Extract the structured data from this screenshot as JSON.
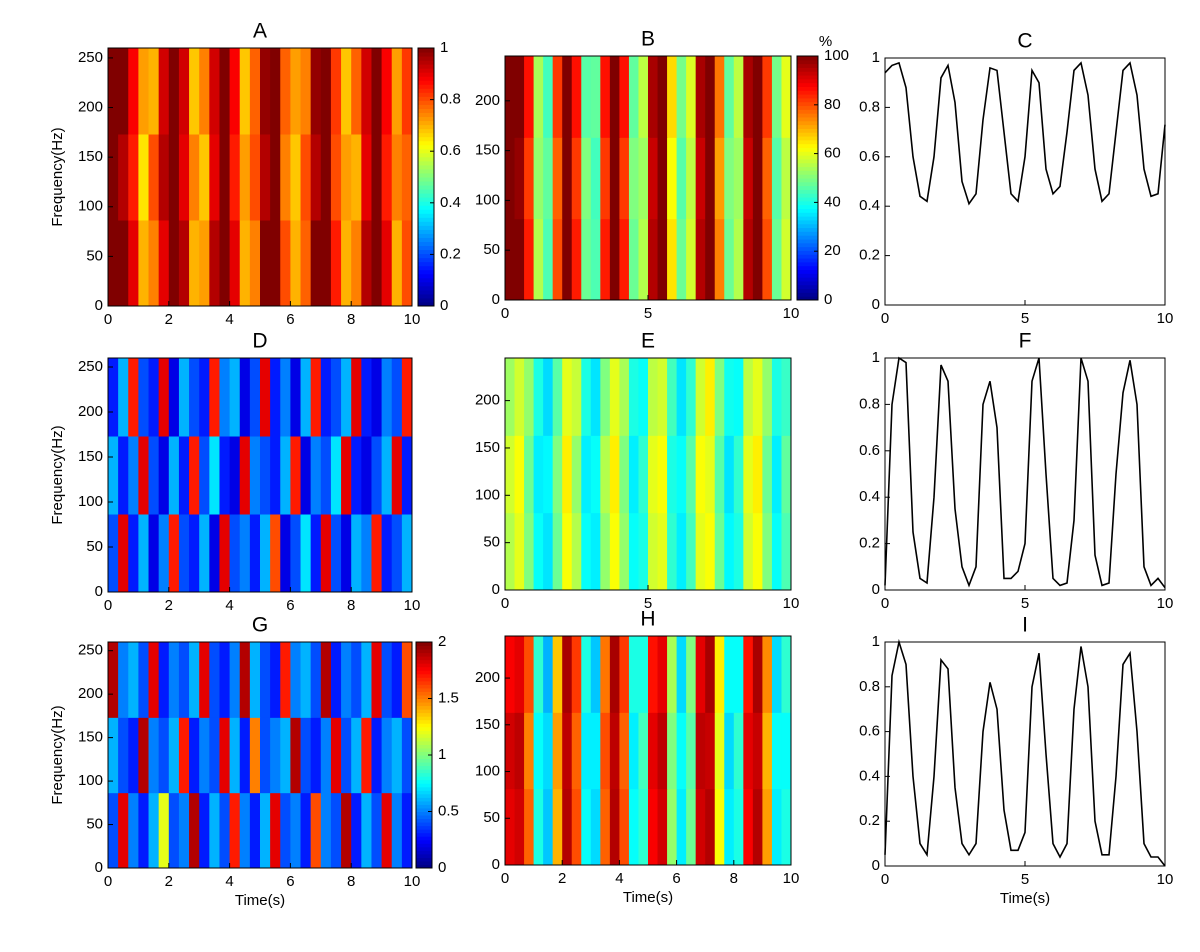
{
  "chart_data": [
    {
      "type": "heatmap",
      "title": "A",
      "ylabel": "Frequency(Hz)",
      "xlim": [
        0,
        10
      ],
      "ylim": [
        0,
        260
      ],
      "xticks": [
        0,
        2,
        4,
        6,
        8,
        10
      ],
      "yticks": [
        0,
        50,
        100,
        150,
        200,
        250
      ],
      "zlim": [
        0,
        1
      ],
      "colorbar": {
        "ticks": [
          0,
          0.2,
          0.4,
          0.6,
          0.8,
          1
        ]
      },
      "z": [
        [
          1,
          1,
          0.9,
          0.7,
          0.75,
          0.9,
          1,
          0.95,
          0.7,
          0.72,
          0.95,
          1,
          0.9,
          0.7,
          0.75,
          1,
          1,
          0.8,
          0.7,
          0.78,
          1,
          1,
          0.85,
          0.7,
          0.75,
          0.95,
          1,
          0.9,
          0.7,
          0.8
        ],
        [
          1,
          0.95,
          0.85,
          0.65,
          0.8,
          0.95,
          1,
          0.9,
          0.75,
          0.68,
          0.9,
          1,
          0.85,
          0.72,
          0.8,
          0.95,
          1,
          0.75,
          0.68,
          0.8,
          0.95,
          1,
          0.8,
          0.72,
          0.7,
          0.9,
          1,
          0.85,
          0.75,
          0.78
        ],
        [
          1,
          1,
          0.88,
          0.72,
          0.7,
          0.92,
          1,
          0.92,
          0.68,
          0.75,
          0.92,
          1,
          0.88,
          0.68,
          0.78,
          0.98,
          1,
          0.78,
          0.72,
          0.75,
          0.98,
          1,
          0.82,
          0.68,
          0.78,
          0.92,
          1,
          0.88,
          0.72,
          0.82
        ]
      ]
    },
    {
      "type": "heatmap",
      "title": "B",
      "xlim": [
        0,
        10
      ],
      "ylim": [
        0,
        245
      ],
      "xticks": [
        0,
        5,
        10
      ],
      "yticks": [
        0,
        50,
        100,
        150,
        200
      ],
      "zlim": [
        0,
        100
      ],
      "colorbar": {
        "ticks": [
          0,
          20,
          40,
          60,
          80,
          100
        ],
        "label": "%"
      },
      "z": [
        [
          100,
          100,
          85,
          55,
          45,
          80,
          100,
          85,
          48,
          45,
          85,
          100,
          85,
          48,
          55,
          95,
          100,
          65,
          48,
          58,
          95,
          100,
          75,
          48,
          55,
          95,
          100,
          80,
          48,
          58
        ],
        [
          100,
          98,
          82,
          52,
          47,
          78,
          100,
          82,
          50,
          44,
          82,
          100,
          82,
          50,
          53,
          93,
          100,
          62,
          46,
          56,
          93,
          100,
          72,
          50,
          53,
          93,
          100,
          78,
          46,
          56
        ],
        [
          100,
          100,
          86,
          54,
          44,
          82,
          100,
          86,
          46,
          47,
          86,
          100,
          86,
          47,
          56,
          96,
          100,
          66,
          49,
          59,
          96,
          100,
          76,
          47,
          56,
          96,
          100,
          82,
          49,
          60
        ]
      ]
    },
    {
      "type": "line",
      "title": "C",
      "xlim": [
        0,
        10
      ],
      "ylim": [
        0,
        1
      ],
      "xticks": [
        0,
        5,
        10
      ],
      "yticks": [
        0,
        0.2,
        0.4,
        0.6,
        0.8,
        1
      ],
      "color": "#000000",
      "x": [
        0,
        0.25,
        0.5,
        0.75,
        1,
        1.25,
        1.5,
        1.75,
        2,
        2.25,
        2.5,
        2.75,
        3,
        3.25,
        3.5,
        3.75,
        4,
        4.25,
        4.5,
        4.75,
        5,
        5.25,
        5.5,
        5.75,
        6,
        6.25,
        6.5,
        6.75,
        7,
        7.25,
        7.5,
        7.75,
        8,
        8.25,
        8.5,
        8.75,
        9,
        9.25,
        9.5,
        9.75,
        10
      ],
      "values": [
        0.94,
        0.97,
        0.98,
        0.88,
        0.6,
        0.44,
        0.42,
        0.6,
        0.92,
        0.97,
        0.82,
        0.5,
        0.41,
        0.45,
        0.75,
        0.96,
        0.95,
        0.7,
        0.45,
        0.42,
        0.6,
        0.95,
        0.9,
        0.55,
        0.45,
        0.48,
        0.7,
        0.95,
        0.98,
        0.85,
        0.55,
        0.42,
        0.45,
        0.7,
        0.95,
        0.98,
        0.85,
        0.55,
        0.44,
        0.45,
        0.73
      ]
    },
    {
      "type": "heatmap",
      "title": "D",
      "ylabel": "Frequency(Hz)",
      "xlim": [
        0,
        10
      ],
      "ylim": [
        0,
        260
      ],
      "xticks": [
        0,
        2,
        4,
        6,
        8,
        10
      ],
      "yticks": [
        0,
        50,
        100,
        150,
        200,
        250
      ],
      "zlim": [
        0,
        1
      ],
      "z": [
        [
          0.2,
          0.9,
          0.15,
          0.3,
          0.1,
          0.25,
          0.85,
          0.2,
          0.15,
          0.3,
          0.1,
          0.9,
          0.2,
          0.25,
          0.15,
          0.3,
          0.8,
          0.1,
          0.2,
          0.35,
          0.15,
          0.9,
          0.2,
          0.1,
          0.3,
          0.25,
          0.85,
          0.15,
          0.2,
          0.3
        ],
        [
          0.3,
          0.15,
          0.25,
          0.9,
          0.2,
          0.1,
          0.3,
          0.15,
          0.85,
          0.2,
          0.35,
          0.15,
          0.1,
          0.9,
          0.25,
          0.2,
          0.15,
          0.3,
          0.85,
          0.1,
          0.25,
          0.2,
          0.35,
          0.9,
          0.15,
          0.1,
          0.2,
          0.3,
          0.9,
          0.15
        ],
        [
          0.15,
          0.3,
          0.85,
          0.2,
          0.15,
          0.9,
          0.1,
          0.3,
          0.2,
          0.15,
          0.85,
          0.25,
          0.3,
          0.1,
          0.2,
          0.9,
          0.15,
          0.25,
          0.1,
          0.3,
          0.85,
          0.15,
          0.2,
          0.3,
          0.9,
          0.15,
          0.1,
          0.25,
          0.2,
          0.85
        ]
      ]
    },
    {
      "type": "heatmap",
      "title": "E",
      "xlim": [
        0,
        10
      ],
      "ylim": [
        0,
        245
      ],
      "xticks": [
        0,
        5,
        10
      ],
      "yticks": [
        0,
        50,
        100,
        150,
        200
      ],
      "zlim": [
        0,
        100
      ],
      "z": [
        [
          55,
          60,
          50,
          38,
          35,
          48,
          62,
          55,
          38,
          36,
          52,
          62,
          52,
          38,
          40,
          58,
          60,
          42,
          36,
          44,
          60,
          62,
          48,
          37,
          40,
          58,
          62,
          50,
          38,
          45
        ],
        [
          58,
          62,
          48,
          36,
          37,
          50,
          64,
          52,
          36,
          38,
          55,
          64,
          50,
          36,
          42,
          60,
          62,
          40,
          38,
          46,
          62,
          60,
          46,
          35,
          42,
          60,
          64,
          48,
          36,
          47
        ],
        [
          53,
          58,
          52,
          40,
          34,
          46,
          60,
          57,
          40,
          35,
          50,
          60,
          54,
          40,
          38,
          56,
          58,
          44,
          35,
          42,
          58,
          64,
          50,
          39,
          38,
          56,
          60,
          52,
          40,
          43
        ]
      ]
    },
    {
      "type": "line",
      "title": "F",
      "xlim": [
        0,
        10
      ],
      "ylim": [
        0,
        1
      ],
      "xticks": [
        0,
        5,
        10
      ],
      "yticks": [
        0,
        0.2,
        0.4,
        0.6,
        0.8,
        1
      ],
      "color": "#000000",
      "x": [
        0,
        0.25,
        0.5,
        0.75,
        1,
        1.25,
        1.5,
        1.75,
        2,
        2.25,
        2.5,
        2.75,
        3,
        3.25,
        3.5,
        3.75,
        4,
        4.25,
        4.5,
        4.75,
        5,
        5.25,
        5.5,
        5.75,
        6,
        6.25,
        6.5,
        6.75,
        7,
        7.25,
        7.5,
        7.75,
        8,
        8.25,
        8.5,
        8.75,
        9,
        9.25,
        9.5,
        9.75,
        10
      ],
      "values": [
        0.02,
        0.8,
        1,
        0.98,
        0.25,
        0.05,
        0.03,
        0.4,
        0.97,
        0.9,
        0.35,
        0.1,
        0.02,
        0.1,
        0.8,
        0.9,
        0.7,
        0.05,
        0.05,
        0.08,
        0.2,
        0.9,
        1,
        0.5,
        0.05,
        0.02,
        0.03,
        0.3,
        1,
        0.9,
        0.15,
        0.02,
        0.03,
        0.5,
        0.85,
        0.99,
        0.8,
        0.1,
        0.02,
        0.05,
        0.01
      ]
    },
    {
      "type": "heatmap",
      "title": "G",
      "ylabel": "Frequency(Hz)",
      "xlabel": "Time(s)",
      "xlim": [
        0,
        10
      ],
      "ylim": [
        0,
        260
      ],
      "xticks": [
        0,
        2,
        4,
        6,
        8,
        10
      ],
      "yticks": [
        0,
        50,
        100,
        150,
        200,
        250
      ],
      "zlim": [
        0,
        2
      ],
      "colorbar": {
        "ticks": [
          0,
          0.5,
          1,
          1.5,
          2
        ]
      },
      "z": [
        [
          0.4,
          1.8,
          0.5,
          0.3,
          0.6,
          1.2,
          0.4,
          0.5,
          1.9,
          0.3,
          0.6,
          0.4,
          1.7,
          0.5,
          0.3,
          0.6,
          1.8,
          0.4,
          0.5,
          0.3,
          1.6,
          0.5,
          0.4,
          1.9,
          0.3,
          0.6,
          0.4,
          1.8,
          0.5,
          0.3
        ],
        [
          0.6,
          0.4,
          0.3,
          1.9,
          0.5,
          0.4,
          0.6,
          1.7,
          0.3,
          0.5,
          0.4,
          1.8,
          0.6,
          0.3,
          1.5,
          0.4,
          0.5,
          0.6,
          1.9,
          0.4,
          0.3,
          0.5,
          1.8,
          0.4,
          0.6,
          1.7,
          0.3,
          0.5,
          0.6,
          0.4
        ],
        [
          1.9,
          0.5,
          0.6,
          0.4,
          1.8,
          0.3,
          0.5,
          0.4,
          0.6,
          1.8,
          0.4,
          0.3,
          0.5,
          1.9,
          0.6,
          0.4,
          0.3,
          1.7,
          0.5,
          0.6,
          0.4,
          1.9,
          0.3,
          0.5,
          0.4,
          0.6,
          1.8,
          0.4,
          0.3,
          1.6
        ]
      ]
    },
    {
      "type": "heatmap",
      "title": "H",
      "xlabel": "Time(s)",
      "xlim": [
        0,
        10
      ],
      "ylim": [
        0,
        245
      ],
      "xticks": [
        0,
        2,
        4,
        6,
        8,
        10
      ],
      "yticks": [
        0,
        50,
        100,
        150,
        200
      ],
      "zlim": [
        0,
        100
      ],
      "z": [
        [
          90,
          92,
          78,
          40,
          32,
          70,
          95,
          80,
          38,
          34,
          78,
          95,
          80,
          38,
          42,
          88,
          92,
          52,
          36,
          48,
          92,
          95,
          62,
          36,
          40,
          88,
          95,
          72,
          36,
          40
        ],
        [
          92,
          94,
          75,
          38,
          34,
          72,
          94,
          78,
          36,
          36,
          80,
          94,
          78,
          36,
          44,
          90,
          94,
          50,
          38,
          46,
          94,
          93,
          60,
          34,
          42,
          90,
          93,
          70,
          38,
          38
        ],
        [
          88,
          90,
          80,
          42,
          30,
          68,
          96,
          82,
          40,
          32,
          76,
          96,
          82,
          40,
          40,
          86,
          90,
          54,
          34,
          50,
          90,
          96,
          64,
          38,
          38,
          86,
          96,
          74,
          34,
          42
        ]
      ]
    },
    {
      "type": "line",
      "title": "I",
      "xlabel": "Time(s)",
      "xlim": [
        0,
        10
      ],
      "ylim": [
        0,
        1
      ],
      "xticks": [
        0,
        5,
        10
      ],
      "yticks": [
        0,
        0.2,
        0.4,
        0.6,
        0.8,
        1
      ],
      "color": "#000000",
      "x": [
        0,
        0.25,
        0.5,
        0.75,
        1,
        1.25,
        1.5,
        1.75,
        2,
        2.25,
        2.5,
        2.75,
        3,
        3.25,
        3.5,
        3.75,
        4,
        4.25,
        4.5,
        4.75,
        5,
        5.25,
        5.5,
        5.75,
        6,
        6.25,
        6.5,
        6.75,
        7,
        7.25,
        7.5,
        7.75,
        8,
        8.25,
        8.5,
        8.75,
        9,
        9.25,
        9.5,
        9.75,
        10
      ],
      "values": [
        0.05,
        0.85,
        1,
        0.9,
        0.4,
        0.1,
        0.05,
        0.4,
        0.92,
        0.88,
        0.35,
        0.1,
        0.05,
        0.1,
        0.6,
        0.82,
        0.7,
        0.25,
        0.07,
        0.07,
        0.15,
        0.8,
        0.95,
        0.5,
        0.1,
        0.04,
        0.1,
        0.7,
        0.98,
        0.8,
        0.2,
        0.05,
        0.05,
        0.4,
        0.9,
        0.95,
        0.6,
        0.1,
        0.04,
        0.04,
        0
      ]
    }
  ]
}
